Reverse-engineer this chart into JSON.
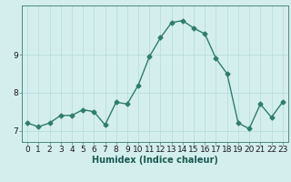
{
  "x": [
    0,
    1,
    2,
    3,
    4,
    5,
    6,
    7,
    8,
    9,
    10,
    11,
    12,
    13,
    14,
    15,
    16,
    17,
    18,
    19,
    20,
    21,
    22,
    23
  ],
  "y": [
    7.2,
    7.1,
    7.2,
    7.4,
    7.4,
    7.55,
    7.5,
    7.15,
    7.75,
    7.7,
    8.2,
    8.95,
    9.45,
    9.85,
    9.9,
    9.7,
    9.55,
    8.9,
    8.5,
    7.2,
    7.05,
    7.7,
    7.35,
    7.75
  ],
  "line_color": "#2e7d6e",
  "marker": "D",
  "marker_size": 2.5,
  "bg_color": "#d4eeee",
  "grid_color": "#b8dede",
  "xlabel": "Humidex (Indice chaleur)",
  "xlim": [
    -0.5,
    23.5
  ],
  "ylim": [
    6.7,
    10.3
  ],
  "yticks": [
    7,
    8,
    9
  ],
  "xticks": [
    0,
    1,
    2,
    3,
    4,
    5,
    6,
    7,
    8,
    9,
    10,
    11,
    12,
    13,
    14,
    15,
    16,
    17,
    18,
    19,
    20,
    21,
    22,
    23
  ],
  "xlabel_fontsize": 7.0,
  "tick_fontsize": 6.5,
  "linewidth": 1.0
}
